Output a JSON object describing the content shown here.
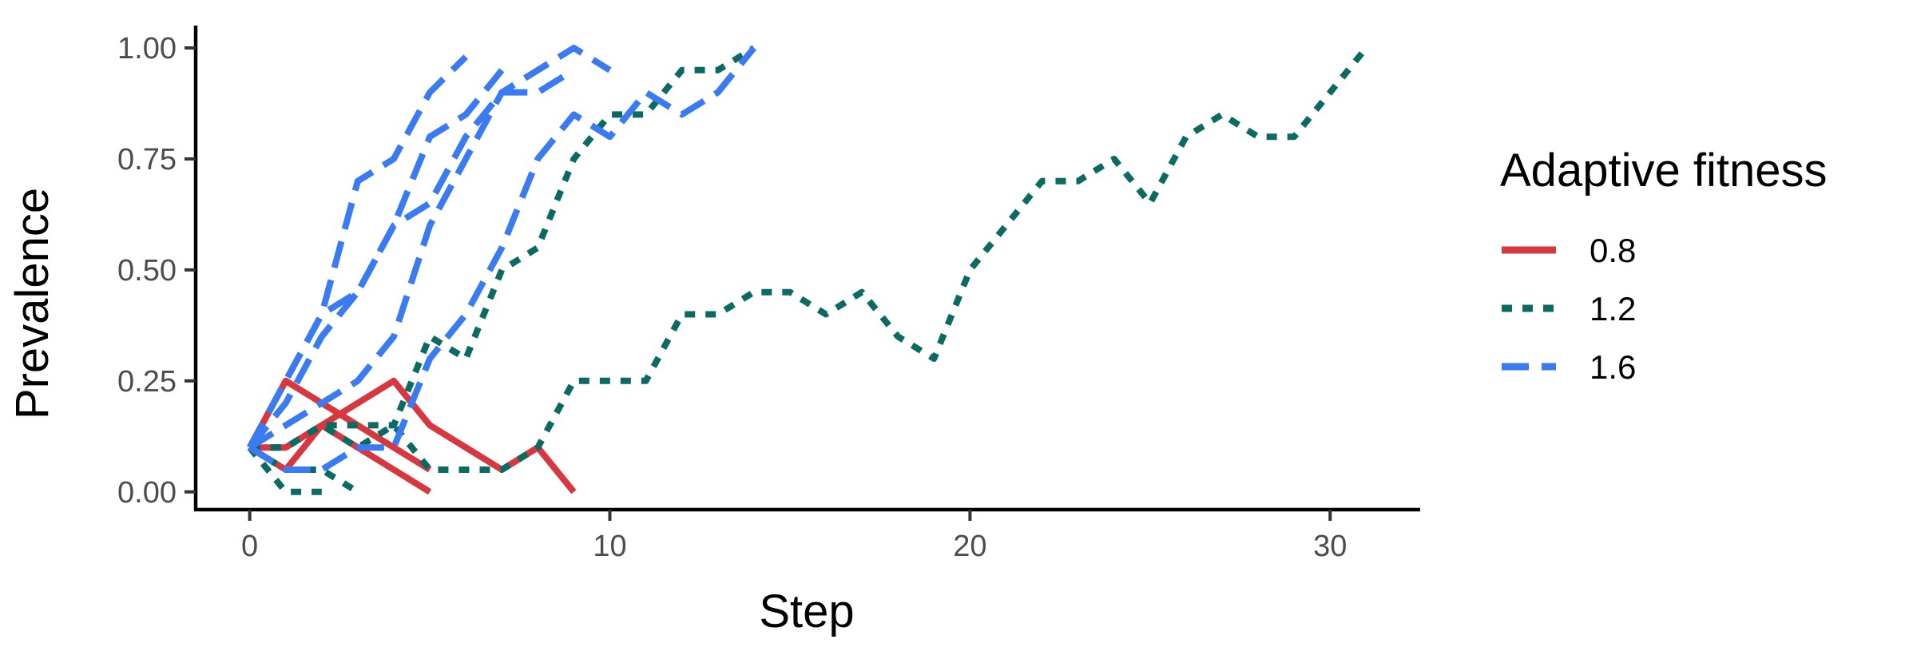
{
  "chart_data": {
    "type": "line",
    "title": "",
    "xlabel": "Step",
    "ylabel": "Prevalence",
    "xlim": [
      -1.5,
      32.5
    ],
    "ylim": [
      -0.04,
      1.045
    ],
    "x_ticks": [
      0,
      10,
      20,
      30
    ],
    "x_tick_labels": [
      "0",
      "10",
      "20",
      "30"
    ],
    "y_ticks": [
      0,
      0.25,
      0.5,
      0.75,
      1
    ],
    "y_tick_labels": [
      "0.00",
      "0.25",
      "0.50",
      "0.75",
      "1.00"
    ],
    "grid": false,
    "legend": {
      "title": "Adaptive fitness",
      "position": "right",
      "entries": [
        {
          "label": "0.8",
          "color": "#d7373f",
          "dash": "solid"
        },
        {
          "label": "1.2",
          "color": "#0b6b62",
          "dash": "dotted"
        },
        {
          "label": "1.6",
          "color": "#3a7bf2",
          "dash": "dashed"
        }
      ]
    },
    "series": [
      {
        "group": "0.8",
        "x": [
          0,
          1,
          2,
          3,
          4,
          5
        ],
        "y": [
          0.1,
          0.25,
          0.2,
          0.15,
          0.1,
          0.05
        ]
      },
      {
        "group": "0.8",
        "x": [
          0,
          1,
          2,
          3,
          4,
          5,
          6,
          7,
          8,
          9
        ],
        "y": [
          0.1,
          0.1,
          0.15,
          0.2,
          0.25,
          0.15,
          0.1,
          0.05,
          0.1,
          0.0
        ]
      },
      {
        "group": "0.8",
        "x": [
          0,
          1,
          2,
          3,
          4,
          5
        ],
        "y": [
          0.1,
          0.05,
          0.15,
          0.1,
          0.05,
          0.0
        ]
      },
      {
        "group": "1.2",
        "x": [
          0,
          1,
          2,
          3
        ],
        "y": [
          0.1,
          0.05,
          0.05,
          0.0
        ]
      },
      {
        "group": "1.2",
        "x": [
          0,
          1,
          2
        ],
        "y": [
          0.1,
          0.0,
          0.0
        ]
      },
      {
        "group": "1.2",
        "x": [
          0,
          1,
          2,
          3,
          4,
          5,
          6,
          7,
          8,
          9,
          10,
          11,
          12,
          13,
          14
        ],
        "y": [
          0.1,
          0.1,
          0.15,
          0.15,
          0.15,
          0.35,
          0.3,
          0.5,
          0.55,
          0.75,
          0.85,
          0.85,
          0.95,
          0.95,
          1.0
        ]
      },
      {
        "group": "1.2",
        "x": [
          0,
          1,
          2,
          3,
          4,
          5,
          6,
          7,
          8,
          9,
          10,
          11,
          12,
          13,
          14,
          15,
          16,
          17,
          18,
          19,
          20,
          21,
          22,
          23,
          24,
          25,
          26,
          27,
          28,
          29,
          30,
          31
        ],
        "y": [
          0.1,
          0.1,
          0.15,
          0.1,
          0.15,
          0.05,
          0.05,
          0.05,
          0.1,
          0.25,
          0.25,
          0.25,
          0.4,
          0.4,
          0.45,
          0.45,
          0.4,
          0.45,
          0.35,
          0.3,
          0.5,
          0.6,
          0.7,
          0.7,
          0.75,
          0.65,
          0.8,
          0.85,
          0.8,
          0.8,
          0.9,
          1.0
        ]
      },
      {
        "group": "1.6",
        "x": [
          0,
          1,
          2,
          3,
          4,
          5,
          6
        ],
        "y": [
          0.1,
          0.25,
          0.4,
          0.7,
          0.75,
          0.9,
          0.98
        ]
      },
      {
        "group": "1.6",
        "x": [
          0,
          1,
          2,
          3,
          4,
          5,
          6,
          7
        ],
        "y": [
          0.1,
          0.25,
          0.4,
          0.45,
          0.6,
          0.8,
          0.85,
          0.95
        ]
      },
      {
        "group": "1.6",
        "x": [
          0,
          1,
          2,
          3,
          4,
          5,
          6,
          7,
          8,
          9
        ],
        "y": [
          0.1,
          0.2,
          0.35,
          0.45,
          0.6,
          0.65,
          0.8,
          0.9,
          0.9,
          0.95
        ]
      },
      {
        "group": "1.6",
        "x": [
          0,
          1,
          2,
          3,
          4,
          5,
          6,
          7,
          8,
          9,
          10
        ],
        "y": [
          0.1,
          0.15,
          0.2,
          0.25,
          0.35,
          0.6,
          0.75,
          0.9,
          0.95,
          1.0,
          0.95
        ]
      },
      {
        "group": "1.6",
        "x": [
          0,
          1,
          2,
          3,
          4,
          5,
          6,
          7,
          8,
          9,
          10,
          11,
          12,
          13,
          14
        ],
        "y": [
          0.1,
          0.05,
          0.05,
          0.1,
          0.1,
          0.3,
          0.4,
          0.55,
          0.75,
          0.85,
          0.8,
          0.9,
          0.85,
          0.9,
          1.0
        ]
      }
    ]
  }
}
